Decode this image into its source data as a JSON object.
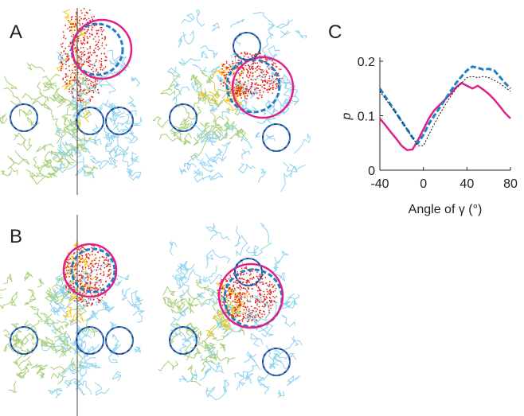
{
  "panel_labels": [
    "A",
    "B",
    "C"
  ],
  "chart_data": {
    "type": "line",
    "xlabel": "Angle of γ (°)",
    "ylabel": "p",
    "x": [
      -40,
      -35,
      -30,
      -25,
      -20,
      -15,
      -10,
      -5,
      0,
      5,
      10,
      15,
      20,
      25,
      30,
      35,
      40,
      45,
      50,
      55,
      60,
      65,
      70,
      75,
      80
    ],
    "xlim": [
      -40,
      80
    ],
    "xticks": [
      -40,
      0,
      40,
      80
    ],
    "ylim": [
      0,
      0.2
    ],
    "yticks": [
      0,
      0.1,
      0.2
    ],
    "series": [
      {
        "color": "#e0218a",
        "style": "solid",
        "width": 2.5,
        "values": [
          0.095,
          0.083,
          0.07,
          0.058,
          0.045,
          0.037,
          0.038,
          0.055,
          0.075,
          0.095,
          0.11,
          0.12,
          0.13,
          0.14,
          0.152,
          0.16,
          0.155,
          0.15,
          0.155,
          0.148,
          0.14,
          0.13,
          0.118,
          0.105,
          0.095
        ]
      },
      {
        "color": "#1f7fc4",
        "style": "dashed",
        "width": 3,
        "values": [
          0.15,
          0.135,
          0.12,
          0.105,
          0.09,
          0.075,
          0.06,
          0.05,
          0.065,
          0.085,
          0.1,
          0.115,
          0.13,
          0.145,
          0.16,
          0.172,
          0.183,
          0.19,
          0.188,
          0.185,
          0.186,
          0.183,
          0.172,
          0.16,
          0.15
        ]
      },
      {
        "color": "#111111",
        "style": "dotted",
        "width": 1,
        "values": [
          0.145,
          0.131,
          0.118,
          0.104,
          0.09,
          0.075,
          0.06,
          0.045,
          0.045,
          0.065,
          0.085,
          0.103,
          0.12,
          0.135,
          0.15,
          0.16,
          0.17,
          0.172,
          0.17,
          0.172,
          0.17,
          0.165,
          0.16,
          0.152,
          0.145
        ]
      }
    ]
  }
}
